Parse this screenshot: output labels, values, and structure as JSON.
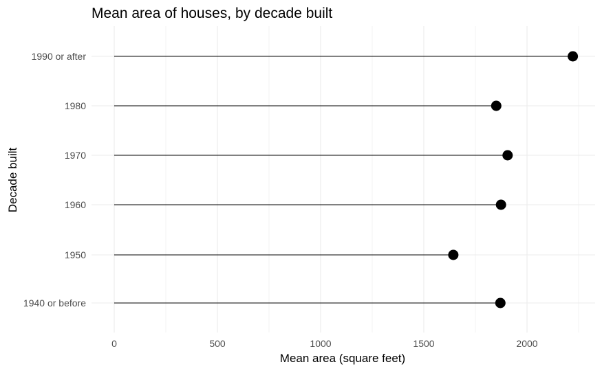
{
  "chart_data": {
    "type": "lollipop",
    "title": "Mean area of houses, by decade built",
    "xlabel": "Mean area (square feet)",
    "ylabel": "Decade built",
    "categories": [
      "1940 or before",
      "1950",
      "1960",
      "1970",
      "1980",
      "1990 or after"
    ],
    "values": [
      1871,
      1643,
      1874,
      1906,
      1851,
      2222
    ],
    "xlim": [
      -110,
      2330
    ],
    "x_ticks": [
      0,
      500,
      1000,
      1500,
      2000
    ],
    "x_tick_labels": [
      "0",
      "500",
      "1000",
      "1500",
      "2000"
    ],
    "grid": true,
    "legend": "none",
    "colors": {
      "stem": "#000000",
      "point": "#000000",
      "grid": "#ebebeb",
      "tick_text": "#4d4d4d",
      "text": "#000000"
    }
  }
}
